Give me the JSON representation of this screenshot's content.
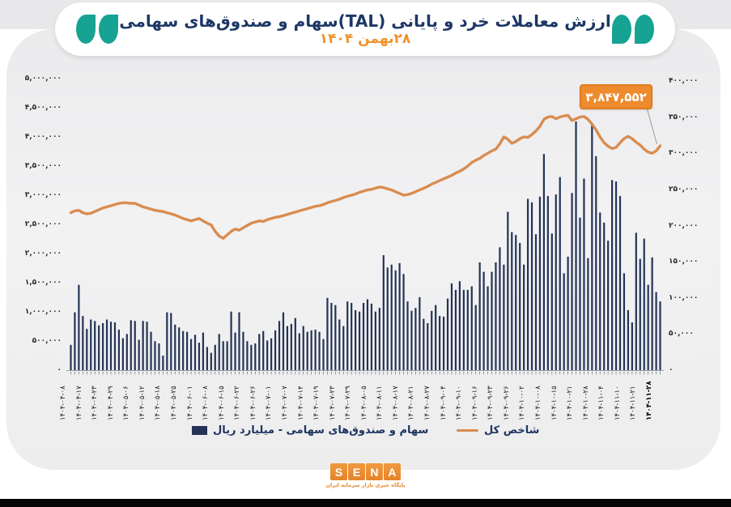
{
  "header": {
    "title": "ارزش معاملات خرد و پایانی (TAL)سهام و صندوق‌های سهامی",
    "subtitle": "۲۸بهمن ۱۴۰۴",
    "open_quote_icon": "teal-double-quote-open",
    "close_quote_icon": "teal-double-quote-close",
    "quote_color": "#16a394",
    "title_color": "#1d3866",
    "subtitle_color": "#f0932c"
  },
  "legend": {
    "bars_label": "سهام و صندوق‌های سهامی -  میلیارد ریال",
    "bars_color": "#243355",
    "index_label": "شاخص کل",
    "index_color": "#d98c4f"
  },
  "footer": {
    "logo_letters": [
      "S",
      "E",
      "N",
      "A"
    ],
    "logo_color": "#ea8a2e",
    "logo_caption": "پایگاه خبری بازار سرمایه ایران"
  },
  "chart_data": {
    "type": "bar+line",
    "title": "ارزش معاملات خرد و پایانی (TAL)سهام و صندوق‌های سهامی ۲۸بهمن ۱۴۰۴",
    "grid": false,
    "legend_position": "bottom",
    "left_axis": {
      "min": 0,
      "max": 5000000,
      "step": 500000,
      "series": "شاخص کل",
      "tick_labels": [
        "۵,۰۰۰,۰۰۰",
        "۴,۵۰۰,۰۰۰",
        "۴,۰۰۰,۰۰۰",
        "۳,۵۰۰,۰۰۰",
        "۳,۰۰۰,۰۰۰",
        "۲,۵۰۰,۰۰۰",
        "۲,۰۰۰,۰۰۰",
        "۱,۵۰۰,۰۰۰",
        "۱,۰۰۰,۰۰۰",
        "۵۰۰,۰۰۰",
        "۰"
      ]
    },
    "right_axis": {
      "min": 0,
      "max": 400000,
      "step": 50000,
      "series": "سهام و صندوق‌های سهامی - میلیارد ریال",
      "tick_labels": [
        "۴۰۰,۰۰۰",
        "۳۵۰,۰۰۰",
        "۳۰۰,۰۰۰",
        "۲۵۰,۰۰۰",
        "۲۰۰,۰۰۰",
        "۱۵۰,۰۰۰",
        "۱۰۰,۰۰۰",
        "۵۰,۰۰۰",
        "۰"
      ]
    },
    "x_tick_labels": [
      "۱۴۰۴-۰۴-۰۸",
      "۱۴۰۴-۰۴-۱۷",
      "۱۴۰۴-۰۴-۲۳",
      "۱۴۰۴-۰۴-۲۹",
      "۱۴۰۴-۰۵-۰۶",
      "۱۴۰۴-۰۵-۱۲",
      "۱۴۰۴-۰۵-۱۸",
      "۱۴۰۴-۰۵-۲۵",
      "۱۴۰۴-۰۶-۰۱",
      "۱۴۰۴-۰۶-۰۸",
      "۱۴۰۴-۰۶-۱۵",
      "۱۴۰۴-۰۶-۲۲",
      "۱۴۰۴-۰۶-۲۶",
      "۱۴۰۴-۰۷-۰۱",
      "۱۴۰۴-۰۷-۰۷",
      "۱۴۰۴-۰۷-۱۴",
      "۱۴۰۴-۰۷-۱۹",
      "۱۴۰۴-۰۷-۲۳",
      "۱۴۰۴-۰۷-۲۹",
      "۱۴۰۴-۰۸-۰۵",
      "۱۴۰۴-۰۸-۱۱",
      "۱۴۰۴-۰۸-۱۷",
      "۱۴۰۴-۰۸-۲۱",
      "۱۴۰۴-۰۸-۲۷",
      "۱۴۰۴-۰۹-۰۴",
      "۱۴۰۴-۰۹-۱۰",
      "۱۴۰۴-۰۹-۱۶",
      "۱۴۰۴-۰۹-۲۳",
      "۱۴۰۴-۰۹-۲۶",
      "۱۴۰۴-۱۰-۰۲",
      "۱۴۰۴-۱۰-۰۸",
      "۱۴۰۴-۱۰-۱۵",
      "۱۴۰۴-۱۰-۲۱",
      "۱۴۰۴-۱۰-۲۸",
      "۱۴۰۴-۱۱-۰۴",
      "۱۴۰۴-۱۱-۱۰",
      "۱۴۰۴-۱۱-۲۱",
      "۱۴۰۴-۱۱-۲۸"
    ],
    "annotation": {
      "text": "۳,۸۴۷,۵۵۲",
      "value": 3847552,
      "series": "شاخص کل",
      "point": "last"
    },
    "series": [
      {
        "name": "سهام و صندوق‌های سهامی -  میلیارد ریال",
        "type": "bar",
        "axis": "right",
        "unit": "میلیارد ریال",
        "color": "#243355",
        "values": [
          35000,
          80000,
          118000,
          75000,
          57000,
          70000,
          68000,
          62000,
          65000,
          70000,
          67000,
          66000,
          56000,
          44000,
          50000,
          69000,
          68000,
          42000,
          68000,
          67000,
          53000,
          40000,
          37000,
          20000,
          80000,
          79000,
          63000,
          59000,
          54000,
          53000,
          43000,
          49000,
          38000,
          52000,
          32000,
          24000,
          35000,
          50000,
          40000,
          40000,
          81000,
          52000,
          80000,
          53000,
          40000,
          35000,
          37000,
          50000,
          54000,
          41000,
          44000,
          55000,
          68000,
          80000,
          61000,
          64000,
          72000,
          51000,
          61000,
          53000,
          55000,
          56000,
          53000,
          43000,
          100000,
          93000,
          90000,
          70000,
          61000,
          95000,
          93000,
          83000,
          81000,
          93000,
          98000,
          92000,
          81000,
          86000,
          159000,
          142000,
          146000,
          138000,
          148000,
          133000,
          95000,
          82000,
          86000,
          101000,
          71000,
          65000,
          82000,
          90000,
          75000,
          74000,
          99000,
          120000,
          111000,
          123000,
          111000,
          111000,
          116000,
          90000,
          149000,
          136000,
          116000,
          136000,
          149000,
          170000,
          146000,
          219000,
          191000,
          187000,
          176000,
          146000,
          237000,
          232000,
          188000,
          240000,
          299000,
          241000,
          189000,
          243000,
          267000,
          134000,
          157000,
          245000,
          344000,
          211000,
          265000,
          155000,
          342000,
          296000,
          218000,
          204000,
          179000,
          263000,
          261000,
          241000,
          134000,
          83000,
          66000,
          190000,
          154000,
          182000,
          118000,
          156000,
          108000,
          95000
        ]
      },
      {
        "name": "شاخص کل",
        "type": "line",
        "axis": "left",
        "color": "#d98c4f",
        "values": [
          2700000,
          2730000,
          2740000,
          2700000,
          2680000,
          2690000,
          2720000,
          2750000,
          2780000,
          2800000,
          2820000,
          2840000,
          2860000,
          2870000,
          2870000,
          2860000,
          2860000,
          2830000,
          2800000,
          2780000,
          2760000,
          2740000,
          2730000,
          2720000,
          2700000,
          2680000,
          2660000,
          2630000,
          2600000,
          2580000,
          2560000,
          2580000,
          2600000,
          2560000,
          2520000,
          2490000,
          2380000,
          2300000,
          2260000,
          2320000,
          2380000,
          2420000,
          2400000,
          2440000,
          2480000,
          2520000,
          2540000,
          2560000,
          2550000,
          2580000,
          2600000,
          2620000,
          2630000,
          2650000,
          2670000,
          2690000,
          2710000,
          2730000,
          2750000,
          2770000,
          2790000,
          2810000,
          2820000,
          2840000,
          2870000,
          2890000,
          2910000,
          2930000,
          2960000,
          2980000,
          3000000,
          3020000,
          3050000,
          3070000,
          3090000,
          3100000,
          3120000,
          3140000,
          3130000,
          3110000,
          3090000,
          3060000,
          3030000,
          3000000,
          3010000,
          3030000,
          3060000,
          3090000,
          3120000,
          3150000,
          3190000,
          3220000,
          3250000,
          3280000,
          3310000,
          3340000,
          3380000,
          3410000,
          3450000,
          3500000,
          3560000,
          3600000,
          3630000,
          3680000,
          3720000,
          3760000,
          3790000,
          3880000,
          4000000,
          3960000,
          3890000,
          3920000,
          3970000,
          4000000,
          3990000,
          4040000,
          4100000,
          4180000,
          4300000,
          4340000,
          4350000,
          4310000,
          4340000,
          4360000,
          4370000,
          4280000,
          4310000,
          4340000,
          4350000,
          4300000,
          4220000,
          4120000,
          4000000,
          3900000,
          3840000,
          3800000,
          3820000,
          3900000,
          3970000,
          4010000,
          3970000,
          3910000,
          3860000,
          3790000,
          3740000,
          3720000,
          3760000,
          3847552
        ]
      }
    ]
  }
}
